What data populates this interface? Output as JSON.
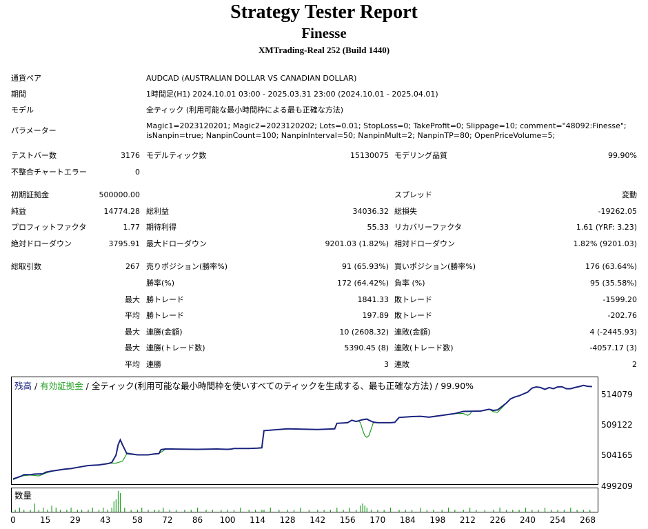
{
  "header": {
    "title": "Strategy Tester Report",
    "subtitle": "Finesse",
    "server": "XMTrading-Real 252 (Build 1440)"
  },
  "info": {
    "symbol_label": "通貨ペア",
    "symbol_value": "AUDCAD (AUSTRALIAN DOLLAR VS CANADIAN DOLLAR)",
    "period_label": "期間",
    "period_value": "1時間足(H1) 2024.10.01 03:00 - 2025.03.31 23:00 (2024.10.01 - 2025.04.01)",
    "model_label": "モデル",
    "model_value": "全ティック (利用可能な最小時間枠による最も正確な方法)",
    "params_label": "パラメーター",
    "params_line1": "Magic1=2023120201; Magic2=2023120202; Lots=0.01; StopLoss=0; TakeProfit=0; Slippage=10; comment=\"48092:Finesse\";",
    "params_line2": "isNanpin=true; NanpinCount=100; NanpinInterval=50; NanpinMult=2; NanpinTP=80; OpenPriceVolume=5;"
  },
  "stats": {
    "bars_label": "テストバー数",
    "bars_value": "3176",
    "ticks_label": "モデルティック数",
    "ticks_value": "15130075",
    "quality_label": "モデリング品質",
    "quality_value": "99.90%",
    "mismatch_label": "不整合チャートエラー",
    "mismatch_value": "0",
    "deposit_label": "初期証拠金",
    "deposit_value": "500000.00",
    "spread_label": "スプレッド",
    "spread_value": "変動",
    "net_label": "純益",
    "net_value": "14774.28",
    "gross_profit_label": "総利益",
    "gross_profit_value": "34036.32",
    "gross_loss_label": "総損失",
    "gross_loss_value": "-19262.05",
    "pf_label": "プロフィットファクタ",
    "pf_value": "1.77",
    "payoff_label": "期待利得",
    "payoff_value": "55.33",
    "rf_label": "リカバリーファクタ",
    "rf_value": "1.61 (YRF: 3.23)",
    "abs_dd_label": "絶対ドローダウン",
    "abs_dd_value": "3795.91",
    "max_dd_label": "最大ドローダウン",
    "max_dd_value": "9201.03 (1.82%)",
    "rel_dd_label": "相対ドローダウン",
    "rel_dd_value": "1.82% (9201.03)",
    "trades_label": "総取引数",
    "trades_value": "267",
    "short_label": "売りポジション(勝率%)",
    "short_value": "91 (65.93%)",
    "long_label": "買いポジション(勝率%)",
    "long_value": "176 (63.64%)",
    "winrate_label": "勝率(%)",
    "winrate_value": "172 (64.42%)",
    "lossrate_label": "負率 (%)",
    "lossrate_value": "95 (35.58%)",
    "max_word": "最大",
    "avg_word": "平均",
    "largest_win_label": "勝トレード",
    "largest_win_value": "1841.33",
    "largest_loss_label": "敗トレード",
    "largest_loss_value": "-1599.20",
    "avg_win_label": "勝トレード",
    "avg_win_value": "197.89",
    "avg_loss_label": "敗トレード",
    "avg_loss_value": "-202.76",
    "cons_wins_label": "連勝(金額)",
    "cons_wins_value": "10 (2608.32)",
    "cons_losses_label": "連敗(金額)",
    "cons_losses_value": "4 (-2445.93)",
    "cons_profit_label": "連勝(トレード数)",
    "cons_profit_value": "5390.45 (8)",
    "cons_loss_label": "連敗(トレード数)",
    "cons_loss_value": "-4057.17 (3)",
    "avg_cons_win_label": "連勝",
    "avg_cons_win_value": "3",
    "avg_cons_loss_label": "連敗",
    "avg_cons_loss_value": "2"
  },
  "chart_data": {
    "type": "line",
    "legend": {
      "balance": "残高",
      "sep1": " / ",
      "equity": "有効証拠金",
      "rest": " / 全ティック(利用可能な最小時間枠を使いすべてのティックを生成する、最も正確な方法) / 99.90%"
    },
    "colors": {
      "balance": "#1a237e",
      "equity": "#22a022",
      "volume": "#22a022",
      "legend_balance": "#1a237e"
    },
    "y_ticks": [
      "514079",
      "509122",
      "504165",
      "499209"
    ],
    "ylim": [
      499209,
      516000
    ],
    "xlim": [
      0,
      272
    ],
    "x_ticks": [
      "0",
      "15",
      "29",
      "43",
      "58",
      "72",
      "86",
      "100",
      "114",
      "128",
      "142",
      "156",
      "170",
      "184",
      "198",
      "212",
      "226",
      "240",
      "254",
      "268"
    ],
    "volume_label": "数量",
    "series": [
      {
        "name": "残高",
        "x": [
          0,
          4,
          5,
          8,
          10,
          14,
          15,
          18,
          20,
          24,
          27,
          30,
          35,
          40,
          44,
          46,
          48,
          49,
          50,
          51,
          53,
          58,
          63,
          66,
          68,
          69,
          71,
          74,
          86,
          95,
          100,
          102,
          103,
          110,
          114,
          116,
          117,
          128,
          142,
          150,
          151,
          156,
          158,
          160,
          161,
          163,
          165,
          166,
          168,
          170,
          176,
          178,
          180,
          186,
          190,
          194,
          200,
          206,
          210,
          218,
          222,
          224,
          226,
          230,
          232,
          234,
          236,
          240,
          242,
          244,
          246,
          248,
          250,
          252,
          254,
          256,
          258,
          260,
          262,
          264,
          266,
          268,
          270
        ],
        "y": [
          499600,
          500100,
          500300,
          500300,
          500400,
          500450,
          500700,
          500900,
          501000,
          501200,
          501300,
          501500,
          501800,
          501900,
          502100,
          502300,
          503500,
          505200,
          506000,
          505200,
          503800,
          503550,
          503550,
          503700,
          503750,
          504400,
          504500,
          504500,
          504450,
          504500,
          504450,
          504500,
          504600,
          504600,
          504650,
          504700,
          507500,
          507800,
          507700,
          507800,
          508700,
          508800,
          509200,
          509000,
          509100,
          509300,
          509400,
          509200,
          508900,
          508800,
          508800,
          508850,
          509650,
          509800,
          509850,
          509700,
          510000,
          510300,
          510650,
          510700,
          511000,
          510800,
          510900,
          512000,
          512700,
          513000,
          513200,
          513800,
          514450,
          514650,
          514550,
          514250,
          514550,
          514350,
          514650,
          514680,
          514350,
          514350,
          514550,
          514700,
          514900,
          514750,
          514700
        ]
      },
      {
        "name": "有効証拠金",
        "x": [
          0,
          4,
          8,
          12,
          14,
          16,
          18,
          20,
          24,
          27,
          30,
          35,
          40,
          44,
          46,
          48,
          49,
          50,
          51,
          53,
          58,
          63,
          66,
          68,
          71,
          74,
          86,
          95,
          100,
          102,
          103,
          110,
          114,
          116,
          117,
          128,
          142,
          150,
          151,
          156,
          158,
          160,
          161,
          162,
          163,
          164,
          165,
          166,
          168,
          170,
          176,
          178,
          180,
          186,
          190,
          194,
          200,
          206,
          210,
          212,
          213,
          214,
          218,
          222,
          224,
          226,
          230,
          232,
          234,
          236,
          240,
          242,
          244,
          246,
          248,
          250,
          252,
          254,
          256,
          258,
          260,
          262,
          264,
          266,
          268,
          270
        ],
        "y": [
          499500,
          500100,
          500250,
          500100,
          500400,
          500650,
          500850,
          501000,
          501200,
          501300,
          501500,
          501800,
          501900,
          502100,
          502200,
          502200,
          502300,
          502400,
          502500,
          503700,
          503550,
          503550,
          503700,
          503750,
          504450,
          504500,
          504450,
          504500,
          504450,
          504500,
          504600,
          504600,
          504650,
          504700,
          507500,
          507800,
          507700,
          507800,
          508700,
          508800,
          509200,
          509000,
          509100,
          508800,
          507600,
          506700,
          506400,
          506700,
          508800,
          508800,
          508800,
          508850,
          509650,
          509800,
          509850,
          509700,
          510000,
          510300,
          510300,
          510000,
          510200,
          510650,
          510700,
          511000,
          510600,
          510500,
          512000,
          512700,
          513000,
          513200,
          513800,
          514450,
          514650,
          514550,
          514250,
          514550,
          514350,
          514650,
          514680,
          514350,
          514350,
          514550,
          514700,
          514900,
          514750,
          514700
        ]
      }
    ],
    "volume": {
      "x": [
        1,
        3,
        5,
        8,
        10,
        12,
        14,
        16,
        18,
        20,
        22,
        25,
        27,
        30,
        32,
        35,
        37,
        40,
        42,
        44,
        46,
        47,
        48,
        49,
        50,
        52,
        55,
        58,
        60,
        63,
        66,
        68,
        70,
        73,
        76,
        80,
        83,
        86,
        90,
        93,
        97,
        100,
        103,
        106,
        110,
        113,
        116,
        117,
        120,
        124,
        128,
        131,
        134,
        138,
        142,
        145,
        148,
        151,
        154,
        157,
        160,
        162,
        163,
        164,
        165,
        167,
        170,
        173,
        176,
        180,
        183,
        186,
        190,
        193,
        196,
        200,
        203,
        206,
        210,
        213,
        216,
        220,
        224,
        227,
        230,
        233,
        236,
        239,
        242,
        245,
        248,
        251,
        254,
        257,
        260,
        263,
        266,
        269
      ],
      "y": [
        1,
        2,
        1,
        1,
        4,
        1,
        2,
        1,
        3,
        2,
        1,
        1,
        2,
        1,
        1,
        1,
        2,
        1,
        2,
        1,
        2,
        5,
        6,
        10,
        9,
        2,
        1,
        1,
        2,
        1,
        1,
        1,
        2,
        1,
        1,
        1,
        1,
        2,
        1,
        1,
        1,
        1,
        1,
        2,
        1,
        1,
        1,
        1,
        2,
        1,
        1,
        1,
        2,
        1,
        1,
        1,
        1,
        2,
        1,
        2,
        1,
        3,
        4,
        3,
        2,
        1,
        1,
        1,
        2,
        1,
        1,
        1,
        2,
        1,
        1,
        1,
        2,
        1,
        1,
        2,
        1,
        1,
        1,
        2,
        1,
        1,
        1,
        2,
        1,
        1,
        2,
        1,
        1,
        1,
        2,
        1,
        1,
        1
      ],
      "ymax": 10
    }
  }
}
